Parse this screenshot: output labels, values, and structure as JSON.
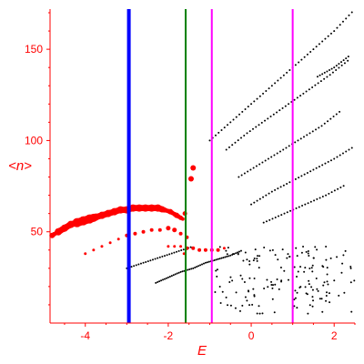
{
  "chart_data": {
    "type": "scatter",
    "xlabel": "E",
    "ylabel": "<n>",
    "xlim": [
      -4.85,
      2.5
    ],
    "ylim": [
      0,
      172
    ],
    "x_ticks": [
      -4,
      -2,
      0,
      2
    ],
    "y_ticks": [
      50,
      100,
      150
    ],
    "tick_labels_x": [
      "-4",
      "-2",
      "0",
      "2"
    ],
    "tick_labels_y": [
      "50",
      "100",
      "150"
    ],
    "grid": false,
    "colors": {
      "axis": "#ff0000",
      "black_points": "#000000",
      "red_points": "#ff0000",
      "blue_line": "#0000ff",
      "green_line": "#008000",
      "magenta_line": "#ff00ff"
    },
    "vertical_lines": [
      {
        "x": -2.95,
        "color": "#0000ff",
        "width": 4
      },
      {
        "x": -1.58,
        "color": "#008000",
        "width": 2
      },
      {
        "x": -0.95,
        "color": "#ff00ff",
        "width": 2
      },
      {
        "x": 1.0,
        "color": "#ff00ff",
        "width": 2
      }
    ],
    "red_series": [
      {
        "points": [
          [
            -4.8,
            48
          ],
          [
            -4.65,
            50
          ],
          [
            -4.5,
            52
          ],
          [
            -4.35,
            54
          ],
          [
            -4.2,
            55
          ],
          [
            -4.05,
            56
          ],
          [
            -3.9,
            57
          ],
          [
            -3.75,
            58
          ],
          [
            -3.6,
            59
          ],
          [
            -3.45,
            60
          ],
          [
            -3.3,
            61
          ],
          [
            -3.15,
            62
          ],
          [
            -3.0,
            62
          ],
          [
            -2.85,
            63
          ],
          [
            -2.7,
            63
          ],
          [
            -2.55,
            63
          ],
          [
            -2.4,
            63
          ],
          [
            -2.25,
            63
          ],
          [
            -2.1,
            62
          ],
          [
            -1.95,
            61
          ],
          [
            -1.8,
            59
          ],
          [
            -1.65,
            57
          ]
        ],
        "sizes": [
          3,
          4,
          4,
          4,
          5,
          5,
          5,
          4,
          4,
          4,
          4,
          4,
          4,
          4,
          4,
          4,
          4,
          4,
          3,
          3,
          3,
          2
        ]
      },
      {
        "points": [
          [
            -4.0,
            38
          ],
          [
            -3.8,
            40
          ],
          [
            -3.6,
            42
          ],
          [
            -3.4,
            44
          ],
          [
            -3.2,
            46
          ],
          [
            -3.0,
            48
          ],
          [
            -2.8,
            49
          ],
          [
            -2.6,
            50
          ],
          [
            -2.4,
            51
          ],
          [
            -2.2,
            51
          ],
          [
            -2.0,
            52
          ],
          [
            -1.85,
            51
          ],
          [
            -1.7,
            49
          ],
          [
            -1.55,
            47
          ]
        ],
        "sizes": [
          1.5,
          1.5,
          1.5,
          1.5,
          1.5,
          2,
          2,
          2,
          2,
          2,
          2.5,
          2.5,
          2,
          2
        ]
      },
      {
        "points": [
          [
            -2.0,
            42
          ],
          [
            -1.85,
            42
          ],
          [
            -1.7,
            42
          ],
          [
            -1.55,
            41
          ],
          [
            -1.4,
            41
          ],
          [
            -1.25,
            40
          ],
          [
            -1.1,
            40
          ],
          [
            -0.95,
            40
          ],
          [
            -0.8,
            40
          ],
          [
            -0.65,
            41
          ],
          [
            -1.4,
            85
          ],
          [
            -1.45,
            79
          ],
          [
            -1.6,
            60
          ],
          [
            -1.62,
            38
          ]
        ],
        "sizes": [
          1.5,
          1.5,
          1.5,
          2,
          2,
          2,
          2,
          2,
          2,
          1.5,
          3,
          3,
          2.5,
          1.5
        ]
      }
    ],
    "black_rows": [
      {
        "x": [
          -3.0,
          -2.6,
          -2.2,
          -1.8,
          -1.4
        ],
        "y": [
          30,
          33,
          36,
          39,
          42
        ]
      },
      {
        "x": [
          -2.3,
          -2.0,
          -1.7,
          -1.4,
          -1.1,
          -0.8,
          -0.5,
          -0.2
        ],
        "y": [
          22,
          25,
          28,
          30,
          33,
          35,
          37,
          40
        ]
      },
      {
        "x": [
          -1.0,
          -0.5,
          0.0,
          0.5,
          1.0,
          1.5,
          2.0,
          2.5
        ],
        "y": [
          100,
          110,
          120,
          130,
          140,
          150,
          160,
          172
        ]
      },
      {
        "x": [
          -0.6,
          -0.1,
          0.4,
          0.9,
          1.4,
          1.9,
          2.4
        ],
        "y": [
          95,
          104,
          112,
          120,
          128,
          136,
          145
        ]
      },
      {
        "x": [
          -0.3,
          0.2,
          0.7,
          1.2,
          1.7,
          2.2
        ],
        "y": [
          80,
          87,
          94,
          101,
          108,
          117
        ]
      },
      {
        "x": [
          0.0,
          0.5,
          1.0,
          1.5,
          2.0,
          2.5
        ],
        "y": [
          65,
          72,
          78,
          84,
          90,
          97
        ]
      },
      {
        "x": [
          0.3,
          0.8,
          1.3,
          1.8,
          2.3
        ],
        "y": [
          55,
          60,
          65,
          70,
          76
        ]
      },
      {
        "x": [
          1.6,
          2.0,
          2.4
        ],
        "y": [
          135,
          140,
          147
        ]
      }
    ],
    "black_scatter_region": {
      "xmin": -0.9,
      "xmax": 2.5,
      "ymin": 5,
      "ymax": 42,
      "count": 160
    }
  }
}
